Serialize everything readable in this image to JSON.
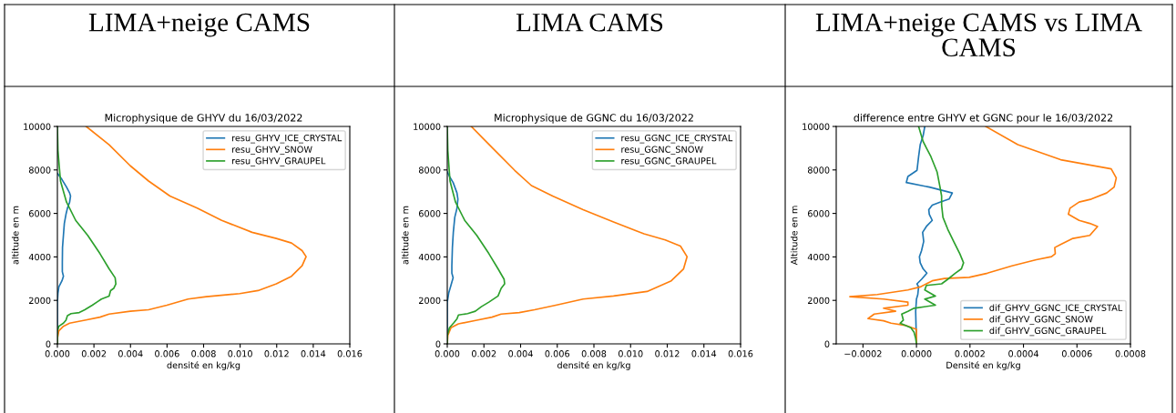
{
  "chart_data": [
    {
      "type": "line",
      "title": "LIMA+neige CAMS",
      "subtitle": "Microphysique de GHYV du 16/03/2022",
      "xlabel": "densité en kg/kg",
      "ylabel": "altitude en m",
      "xlim": [
        0,
        0.016
      ],
      "ylim": [
        0,
        10000
      ],
      "xticks": [
        {
          "value": 0,
          "label": "0.000"
        },
        {
          "value": 0.002,
          "label": "0.002"
        },
        {
          "value": 0.004,
          "label": "0.004"
        },
        {
          "value": 0.006,
          "label": "0.006"
        },
        {
          "value": 0.008,
          "label": "0.008"
        },
        {
          "value": 0.01,
          "label": "0.010"
        },
        {
          "value": 0.012,
          "label": "0.012"
        },
        {
          "value": 0.014,
          "label": "0.014"
        },
        {
          "value": 0.016,
          "label": "0.016"
        }
      ],
      "yticks": [
        0,
        2000,
        4000,
        6000,
        8000,
        10000
      ],
      "legend": "top right",
      "series": [
        {
          "name": "resu_GHYV_ICE_CRYSTAL",
          "color": "#1f77b4",
          "x": [
            0,
            0.00025,
            0.0005,
            0.00067,
            0.00072,
            0.00067,
            0.00055,
            0.00047,
            0.00038,
            0.00033,
            0.00028,
            0.00027,
            0.00027,
            0.00033,
            0.00025,
            8e-05,
            3e-05,
            0,
            0
          ],
          "values": [
            7840,
            7560,
            7210,
            6940,
            6800,
            6520,
            6240,
            5960,
            5540,
            4990,
            4430,
            3730,
            3320,
            3110,
            2900,
            2620,
            2340,
            1920,
            0
          ]
        },
        {
          "name": "resu_GHYV_SNOW",
          "color": "#ff7f0e",
          "x": [
            0.00158,
            0.00283,
            0.00399,
            0.00499,
            0.00616,
            0.00765,
            0.00899,
            0.01065,
            0.01198,
            0.01281,
            0.01339,
            0.01361,
            0.01339,
            0.01281,
            0.01198,
            0.01098,
            0.00998,
            0.00815,
            0.00715,
            0.00599,
            0.00499,
            0.00399,
            0.00283,
            0.00233,
            0.0015,
            0.00067,
            0.00033,
            8e-05,
            0,
            0
          ],
          "values": [
            10000,
            9160,
            8190,
            7490,
            6800,
            6240,
            5680,
            5130,
            4850,
            4640,
            4290,
            4010,
            3590,
            3110,
            2760,
            2450,
            2310,
            2170,
            2060,
            1780,
            1570,
            1500,
            1370,
            1230,
            1090,
            950,
            810,
            600,
            250,
            0
          ]
        },
        {
          "name": "resu_GHYV_GRAUPEL",
          "color": "#2ca02c",
          "x": [
            0,
            3e-05,
            0.00017,
            0.0005,
            0.001,
            0.00166,
            0.00233,
            0.00283,
            0.00316,
            0.0032,
            0.00308,
            0.00291,
            0.00283,
            0.00241,
            0.00216,
            0.00191,
            0.0015,
            0.0012,
            0.00075,
            0.00055,
            0.00047,
            0.00033,
            8e-05,
            0,
            0
          ],
          "values": [
            10000,
            8890,
            7490,
            6520,
            5680,
            4990,
            4150,
            3450,
            3040,
            2760,
            2550,
            2450,
            2200,
            2060,
            1920,
            1780,
            1570,
            1440,
            1390,
            1300,
            1090,
            950,
            810,
            600,
            0
          ]
        }
      ]
    },
    {
      "type": "line",
      "title": "LIMA CAMS",
      "subtitle": "Microphysique de GGNC du 16/03/2022",
      "xlabel": "densité en kg/kg",
      "ylabel": "altitude en m",
      "xlim": [
        0,
        0.016
      ],
      "ylim": [
        0,
        10000
      ],
      "xticks": [
        {
          "value": 0,
          "label": "0.000"
        },
        {
          "value": 0.002,
          "label": "0.002"
        },
        {
          "value": 0.004,
          "label": "0.004"
        },
        {
          "value": 0.006,
          "label": "0.006"
        },
        {
          "value": 0.008,
          "label": "0.008"
        },
        {
          "value": 0.01,
          "label": "0.010"
        },
        {
          "value": 0.012,
          "label": "0.012"
        },
        {
          "value": 0.014,
          "label": "0.014"
        },
        {
          "value": 0.016,
          "label": "0.016"
        }
      ],
      "yticks": [
        0,
        2000,
        4000,
        6000,
        8000,
        10000
      ],
      "legend": "top right",
      "series": [
        {
          "name": "resu_GGNC_ICE_CRYSTAL",
          "color": "#1f77b4",
          "x": [
            0,
            0.00012,
            0.00032,
            0.00053,
            0.00058,
            0.00053,
            0.00041,
            0.00033,
            0.00028,
            0.00025,
            0.00025,
            0.00032,
            0.0002,
            8e-05,
            0,
            0
          ],
          "values": [
            7910,
            7700,
            7420,
            6940,
            6660,
            6240,
            5820,
            5130,
            4430,
            3590,
            3250,
            3040,
            2690,
            2340,
            1920,
            0
          ]
        },
        {
          "name": "resu_GGNC_SNOW",
          "color": "#ff7f0e",
          "x": [
            0.00131,
            0.00244,
            0.00368,
            0.00459,
            0.00575,
            0.00741,
            0.00907,
            0.01073,
            0.01189,
            0.01272,
            0.01308,
            0.01289,
            0.01222,
            0.0109,
            0.00907,
            0.00741,
            0.00592,
            0.00476,
            0.00393,
            0.00294,
            0.00244,
            0.00161,
            0.00061,
            0.0002,
            3e-05,
            0
          ],
          "values": [
            10000,
            9030,
            7980,
            7280,
            6800,
            6170,
            5610,
            5060,
            4780,
            4500,
            4010,
            3450,
            2900,
            2410,
            2200,
            2060,
            1780,
            1570,
            1440,
            1370,
            1230,
            1090,
            920,
            740,
            390,
            0
          ]
        },
        {
          "name": "resu_GGNC_GRAUPEL",
          "color": "#2ca02c",
          "x": [
            0,
            3e-05,
            0.00015,
            0.00045,
            0.00095,
            0.00161,
            0.00227,
            0.00277,
            0.0031,
            0.00313,
            0.00294,
            0.00277,
            0.00227,
            0.00186,
            0.00153,
            0.00111,
            0.00061,
            0.00053,
            0.00036,
            0.00012,
            0,
            0
          ],
          "values": [
            10000,
            8890,
            7490,
            6520,
            5680,
            4990,
            4150,
            3450,
            2970,
            2760,
            2550,
            2200,
            1920,
            1710,
            1500,
            1390,
            1330,
            1150,
            970,
            740,
            390,
            0
          ]
        }
      ]
    },
    {
      "type": "line",
      "title": "LIMA+neige CAMS vs LIMA CAMS",
      "subtitle": "difference entre GHYV et GGNC pour le 16/03/2022",
      "xlabel": "Densité en kg/kg",
      "ylabel": "Altitude en m",
      "xlim": [
        -0.0003,
        0.0008
      ],
      "ylim": [
        0,
        10000
      ],
      "xticks": [
        {
          "value": -0.0002,
          "label": "−0.0002"
        },
        {
          "value": 0,
          "label": "0.0000"
        },
        {
          "value": 0.0002,
          "label": "0.0002"
        },
        {
          "value": 0.0004,
          "label": "0.0004"
        },
        {
          "value": 0.0006,
          "label": "0.0006"
        },
        {
          "value": 0.0008,
          "label": "0.0008"
        }
      ],
      "yticks": [
        0,
        2000,
        4000,
        6000,
        8000,
        10000
      ],
      "legend": "bottom right",
      "series": [
        {
          "name": "dif_GHYV_GGNC_ICE_CRYSTAL",
          "color": "#1f77b4",
          "x": [
            3.1e-05,
            2.5e-05,
            1.4e-05,
            8e-06,
            2e-06,
            -3.2e-05,
            -3.8e-05,
            4.8e-05,
            0.000134,
            0.000122,
            8.8e-05,
            5.9e-05,
            4.6e-05,
            4.8e-05,
            5.9e-05,
            3.7e-05,
            2.3e-05,
            2.7e-05,
            1.9e-05,
            1.1e-05,
            1.4e-05,
            2.5e-05,
            3.9e-05,
            1.9e-05,
            2e-06,
            8e-06,
            5e-06,
            0,
            -3e-06,
            0
          ],
          "values": [
            10000,
            9580,
            9160,
            8610,
            7980,
            7700,
            7420,
            7210,
            6940,
            6660,
            6520,
            6380,
            6170,
            5960,
            5680,
            5400,
            5130,
            4710,
            4290,
            4010,
            3730,
            3450,
            3250,
            2970,
            2760,
            2620,
            2270,
            2060,
            1500,
            0
          ]
        },
        {
          "name": "dif_GHYV_GGNC_SNOW",
          "color": "#ff7f0e",
          "x": [
            0.000259,
            0.000379,
            0.000539,
            0.000728,
            0.000747,
            0.000739,
            0.000711,
            0.000654,
            0.000608,
            0.000574,
            0.000568,
            0.000608,
            0.000648,
            0.000677,
            0.000648,
            0.000585,
            0.000539,
            0.000517,
            0.000519,
            0.000505,
            0.000448,
            0.000357,
            0.000265,
            0.000197,
            0.000105,
            5.9e-05,
            1.4e-05,
            -3.2e-05,
            -0.000146,
            -0.000249,
            -0.000123,
            -3.2e-05,
            -3.2e-05,
            -0.000123,
            -7.8e-05,
            -0.000158,
            -0.000181,
            -0.000123,
            -9.5e-05,
            -3.8e-05,
            0,
            0
          ],
          "values": [
            10000,
            9160,
            8470,
            8050,
            7630,
            7210,
            6940,
            6660,
            6520,
            6240,
            5960,
            5680,
            5540,
            5400,
            4990,
            4850,
            4570,
            4430,
            4150,
            4010,
            3870,
            3590,
            3250,
            3060,
            3010,
            2900,
            2620,
            2480,
            2270,
            2170,
            2060,
            1920,
            1780,
            1640,
            1500,
            1370,
            1160,
            1060,
            950,
            840,
            670,
            0
          ]
        },
        {
          "name": "dif_GHYV_GGNC_GRAUPEL",
          "color": "#2ca02c",
          "x": [
            8e-06,
            2.5e-05,
            5.4e-05,
            7.7e-05,
            8.8e-05,
            9.4e-05,
            9.4e-05,
            9.9e-05,
            0.000117,
            0.000139,
            0.000162,
            0.000176,
            0.000168,
            0.000145,
            0.000117,
            9.4e-05,
            3.7e-05,
            3.1e-05,
            7.1e-05,
            3.1e-05,
            7.1e-05,
            -9e-06,
            -3.2e-05,
            -5.5e-05,
            -4.9e-05,
            -6.1e-05,
            -2.1e-05,
            -9e-06,
            -3e-06,
            0
          ],
          "values": [
            10000,
            9300,
            8610,
            7910,
            7210,
            6800,
            6380,
            5820,
            5270,
            4710,
            4150,
            3730,
            3450,
            3250,
            2970,
            2760,
            2690,
            2480,
            2200,
            2060,
            1780,
            1640,
            1500,
            1370,
            1090,
            950,
            740,
            530,
            250,
            0
          ]
        }
      ]
    }
  ]
}
